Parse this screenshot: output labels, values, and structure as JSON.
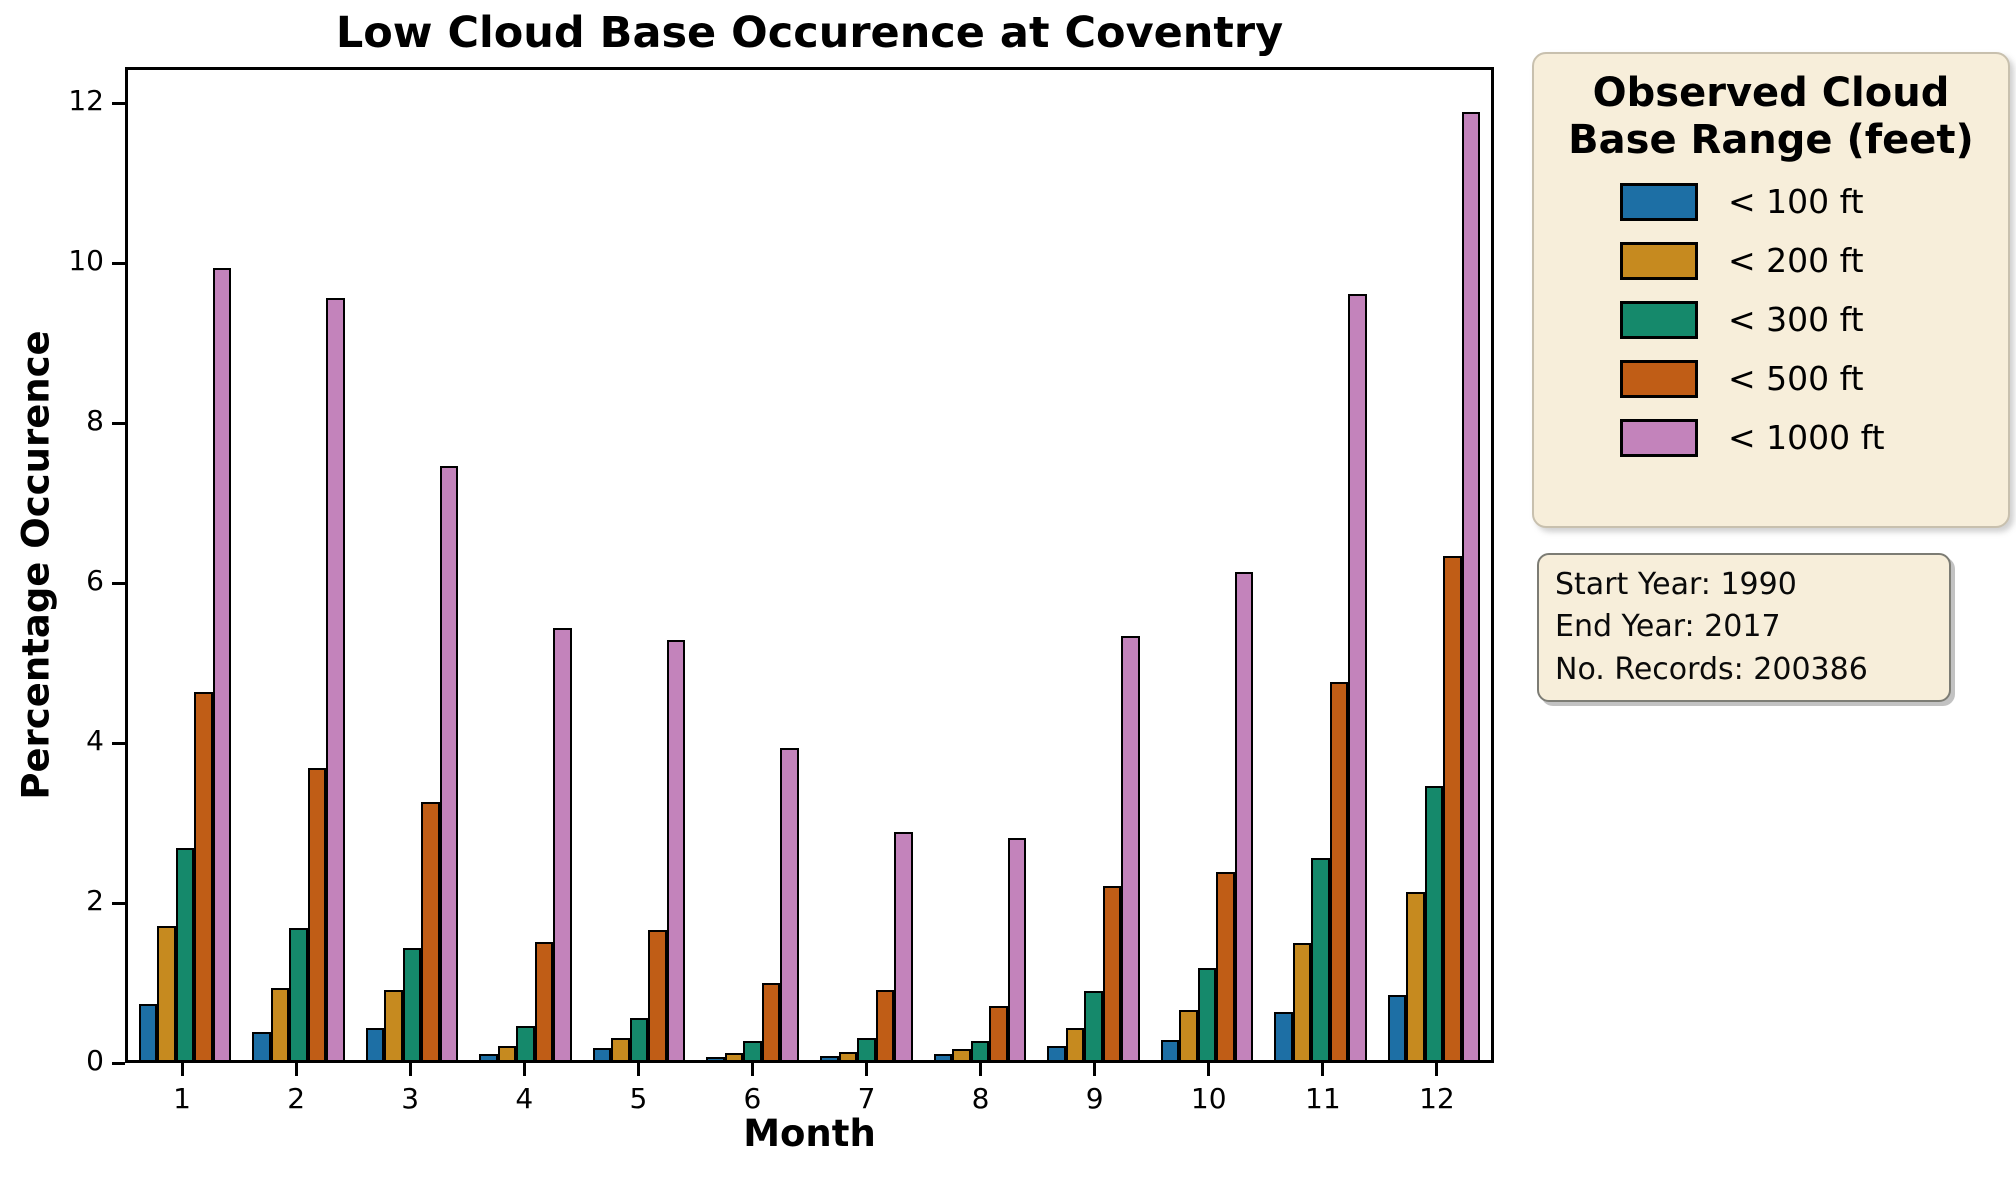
{
  "title": "Low Cloud Base Occurence at Coventry",
  "axes": {
    "xlabel": "Month",
    "ylabel": "Percentage Occurence",
    "yticks": [
      0,
      2,
      4,
      6,
      8,
      10,
      12
    ],
    "xticks": [
      "1",
      "2",
      "3",
      "4",
      "5",
      "6",
      "7",
      "8",
      "9",
      "10",
      "11",
      "12"
    ]
  },
  "chart_data": {
    "type": "bar",
    "title": "Low Cloud Base Occurence at Coventry",
    "xlabel": "Month",
    "ylabel": "Percentage Occurence",
    "categories": [
      1,
      2,
      3,
      4,
      5,
      6,
      7,
      8,
      9,
      10,
      11,
      12
    ],
    "ylim": [
      0,
      12.45
    ],
    "grid": false,
    "legend_position": "outside upper right",
    "legend_title": "Observed Cloud Base Range (feet)",
    "series": [
      {
        "name": "< 100 ft",
        "color": "#1d6fa5",
        "values": [
          0.7,
          0.35,
          0.4,
          0.07,
          0.15,
          0.02,
          0.05,
          0.08,
          0.18,
          0.25,
          0.6,
          0.81
        ]
      },
      {
        "name": "< 200 ft",
        "color": "#c68a1f",
        "values": [
          1.68,
          0.9,
          0.88,
          0.18,
          0.27,
          0.09,
          0.1,
          0.14,
          0.4,
          0.62,
          1.46,
          2.1
        ]
      },
      {
        "name": "< 300 ft",
        "color": "#15896b",
        "values": [
          2.65,
          1.65,
          1.4,
          0.42,
          0.52,
          0.24,
          0.28,
          0.24,
          0.86,
          1.15,
          2.53,
          3.43
        ]
      },
      {
        "name": "< 500 ft",
        "color": "#c05d16",
        "values": [
          4.6,
          3.65,
          3.22,
          1.47,
          1.63,
          0.96,
          0.88,
          0.67,
          2.17,
          2.35,
          4.72,
          6.3
        ]
      },
      {
        "name": "< 1000 ft",
        "color": "#c383bb",
        "values": [
          9.9,
          9.52,
          7.43,
          5.4,
          5.25,
          3.9,
          2.85,
          2.78,
          5.3,
          6.1,
          9.58,
          11.85
        ]
      }
    ]
  },
  "legend": {
    "title_line1": "Observed Cloud",
    "title_line2": "Base Range (feet)",
    "entries": [
      {
        "label": "< 100 ft",
        "color": "#1d6fa5"
      },
      {
        "label": "< 200 ft",
        "color": "#c68a1f"
      },
      {
        "label": "< 300 ft",
        "color": "#15896b"
      },
      {
        "label": "< 500 ft",
        "color": "#c05d16"
      },
      {
        "label": "< 1000 ft",
        "color": "#c383bb"
      }
    ]
  },
  "info_box": {
    "lines": [
      "Start Year: 1990",
      "End Year: 2017",
      "No. Records: 200386"
    ]
  },
  "colors": {
    "panel_background": "#f7eeda",
    "bar_edge": "#000000",
    "axis": "#000000"
  }
}
